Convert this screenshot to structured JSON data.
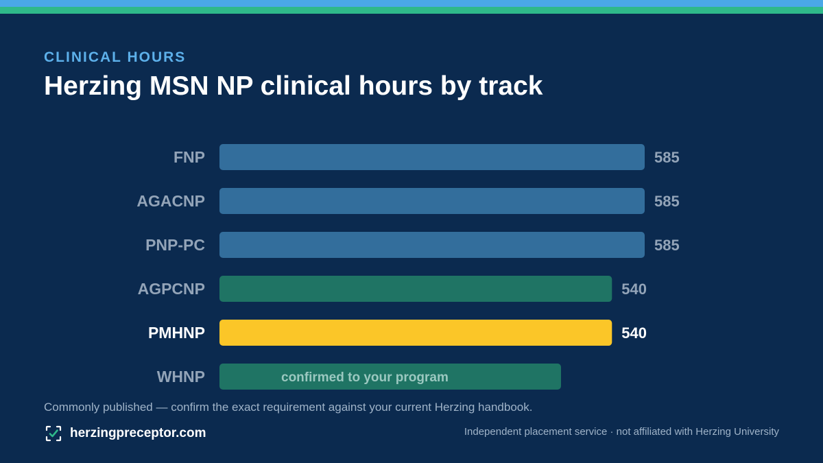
{
  "header": {
    "eyebrow": "CLINICAL HOURS",
    "title": "Herzing MSN NP clinical hours by track"
  },
  "chart_data": {
    "type": "bar",
    "orientation": "horizontal",
    "categories": [
      "FNP",
      "AGACNP",
      "PNP-PC",
      "AGPCNP",
      "PMHNP",
      "WHNP"
    ],
    "values": [
      585,
      585,
      585,
      540,
      540,
      null
    ],
    "value_labels": [
      "585",
      "585",
      "585",
      "540",
      "540",
      ""
    ],
    "bar_notes": [
      "",
      "",
      "",
      "",
      "",
      "confirmed to your program"
    ],
    "bar_colors": [
      "#336e9c",
      "#336e9c",
      "#336e9c",
      "#1f7464",
      "#fbc628",
      "#1f7464"
    ],
    "highlight": "PMHNP",
    "xlim": [
      0,
      585
    ],
    "grid": false,
    "legend": "none"
  },
  "footnote": "Commonly published — confirm the exact requirement against your current Herzing handbook.",
  "footer": {
    "site": "herzingpreceptor.com",
    "disclaimer": "Independent placement service · not affiliated with Herzing University",
    "icon": "checkbox-icon",
    "accent": "#2fb98a"
  }
}
